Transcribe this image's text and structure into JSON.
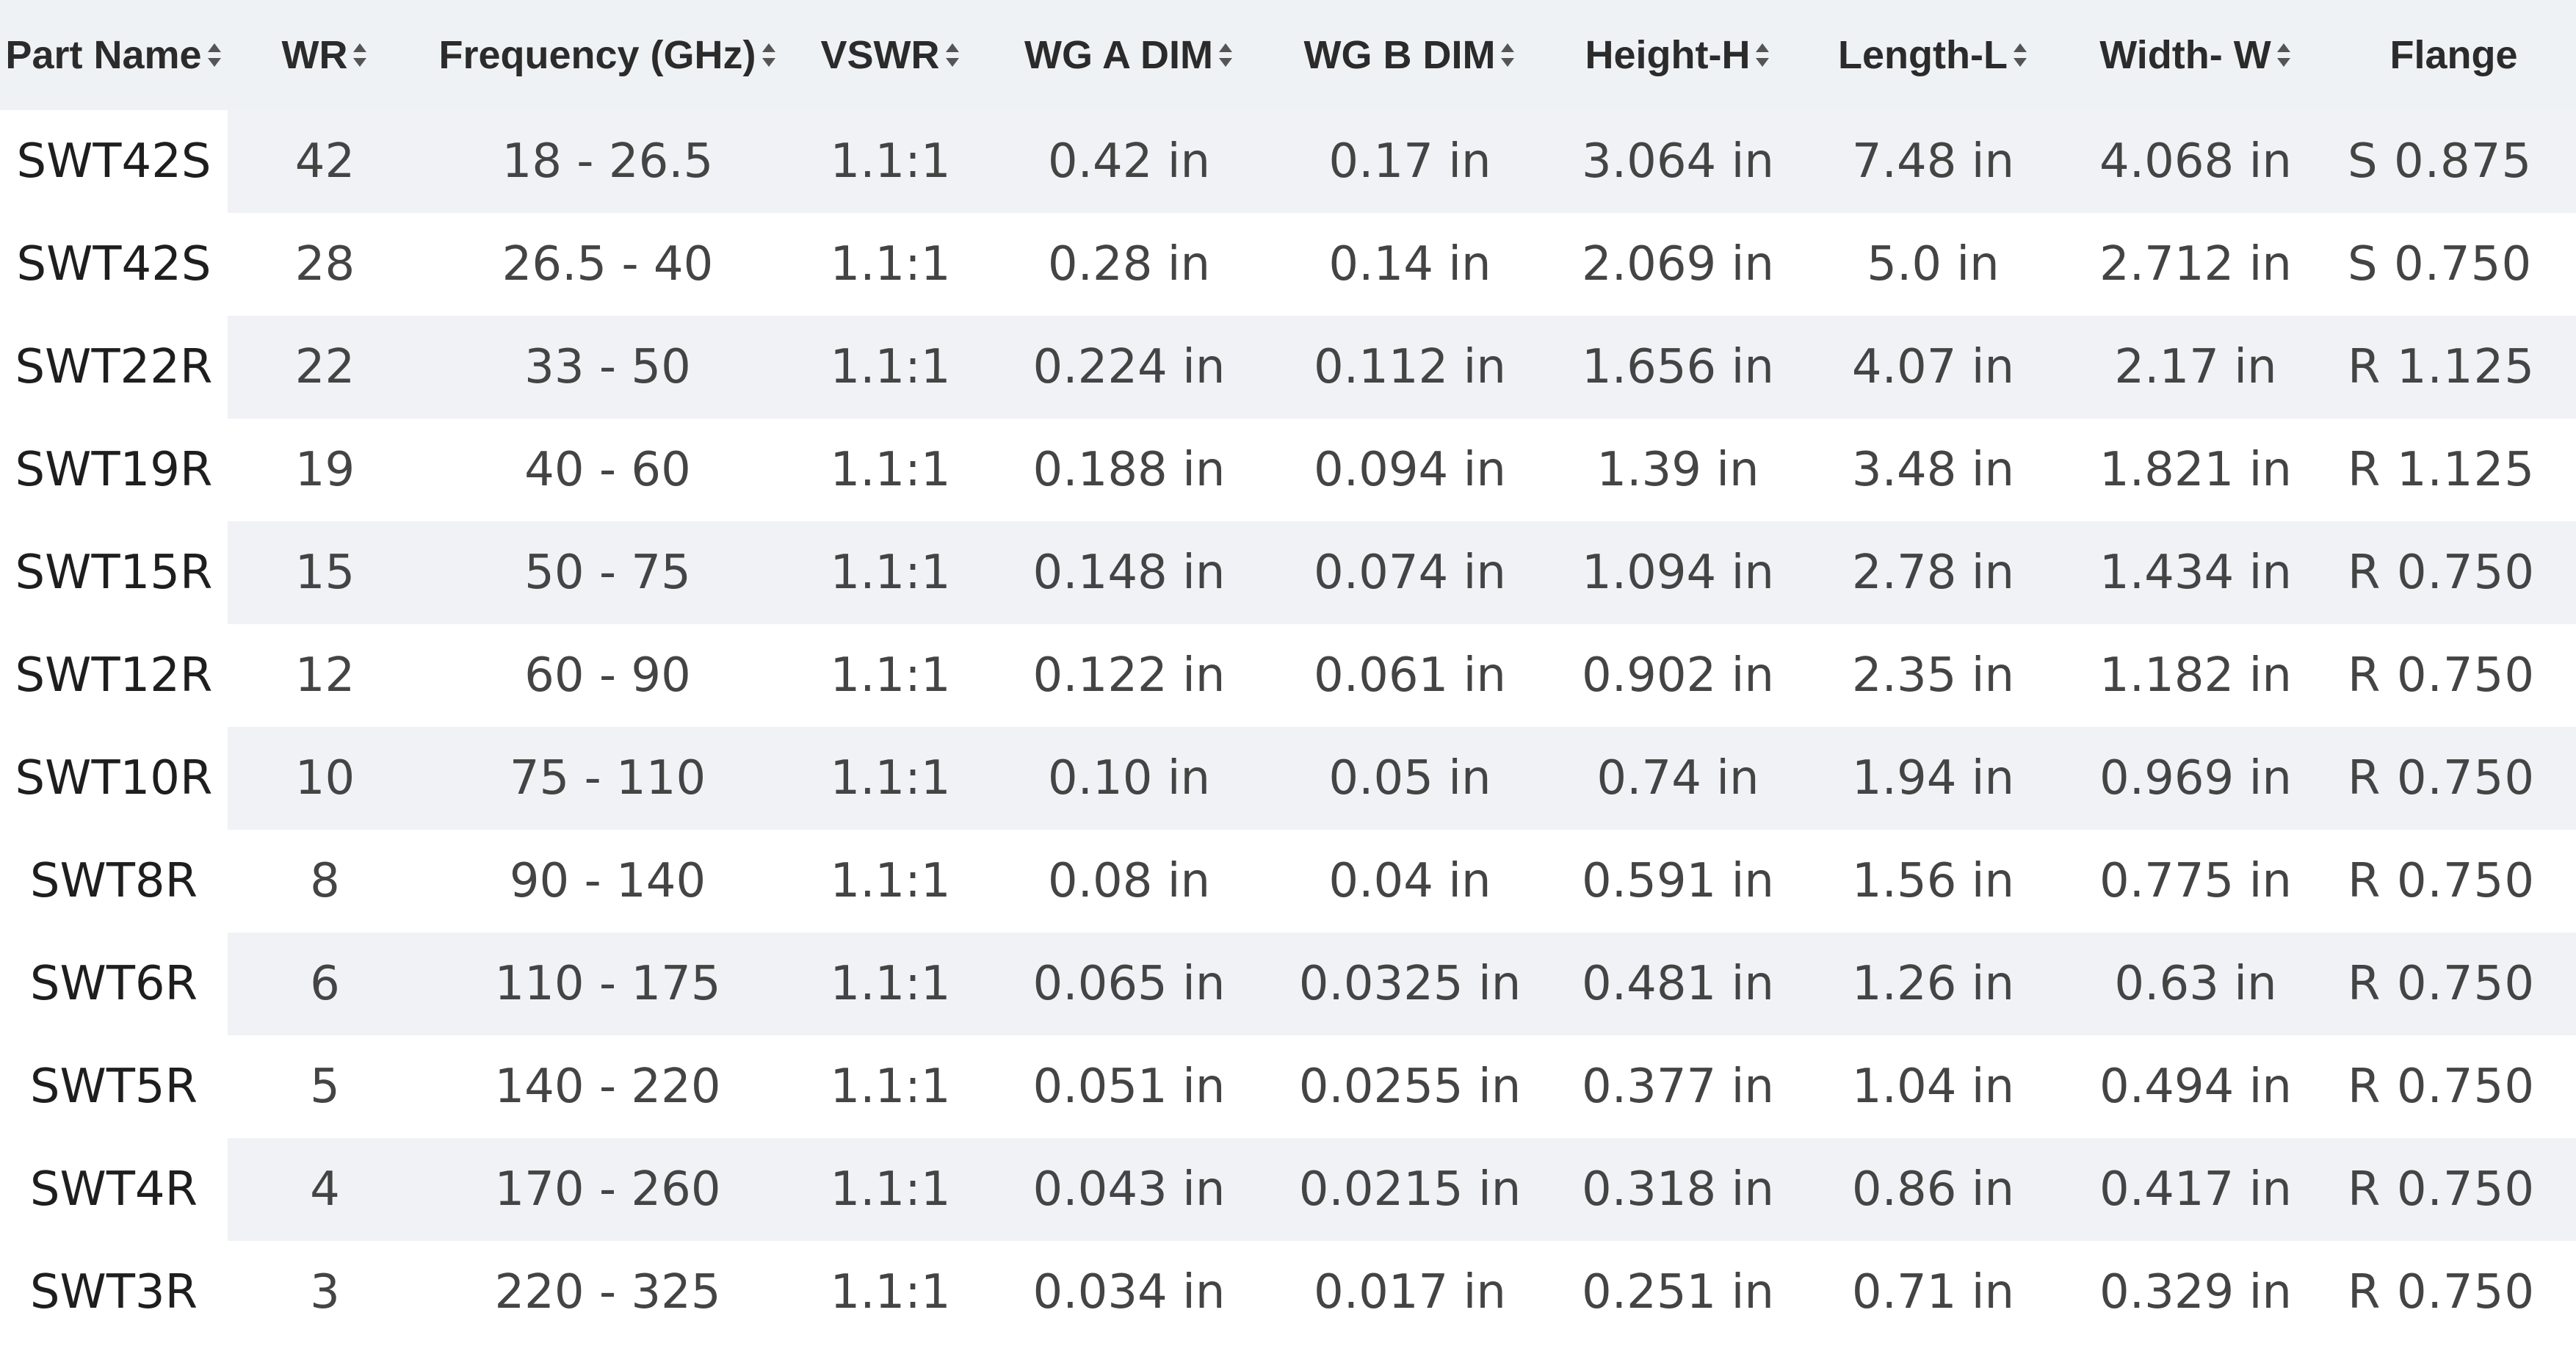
{
  "columns": [
    {
      "label": "Part Name",
      "sortable": true,
      "icon": "sort-icon"
    },
    {
      "label": "WR",
      "sortable": true,
      "icon": "sort-icon"
    },
    {
      "label": "Frequency (GHz)",
      "sortable": true,
      "icon": "sort-icon"
    },
    {
      "label": "VSWR",
      "sortable": true,
      "icon": "sort-icon"
    },
    {
      "label": "WG A DIM",
      "sortable": true,
      "icon": "sort-icon"
    },
    {
      "label": "WG B DIM",
      "sortable": true,
      "icon": "sort-icon"
    },
    {
      "label": "Height-H",
      "sortable": true,
      "icon": "sort-icon"
    },
    {
      "label": "Length-L",
      "sortable": true,
      "icon": "sort-icon"
    },
    {
      "label": "Width- W",
      "sortable": true,
      "icon": "sort-icon"
    },
    {
      "label": "Flange",
      "sortable": false
    }
  ],
  "rows": [
    [
      "SWT42S",
      "42",
      "18 - 26.5",
      "1.1:1",
      "0.42 in",
      "0.17 in",
      "3.064 in",
      "7.48 in",
      "4.068 in",
      "S 0.875"
    ],
    [
      "SWT42S",
      "28",
      "26.5 - 40",
      "1.1:1",
      "0.28 in",
      "0.14 in",
      "2.069 in",
      "5.0 in",
      "2.712 in",
      "S 0.750"
    ],
    [
      "SWT22R",
      "22",
      "33 - 50",
      "1.1:1",
      "0.224 in",
      "0.112 in",
      "1.656 in",
      "4.07 in",
      "2.17 in",
      "R 1.125"
    ],
    [
      "SWT19R",
      "19",
      "40 - 60",
      "1.1:1",
      "0.188 in",
      "0.094 in",
      "1.39 in",
      "3.48 in",
      "1.821 in",
      "R 1.125"
    ],
    [
      "SWT15R",
      "15",
      "50 - 75",
      "1.1:1",
      "0.148 in",
      "0.074 in",
      "1.094 in",
      "2.78 in",
      "1.434 in",
      "R 0.750"
    ],
    [
      "SWT12R",
      "12",
      "60 - 90",
      "1.1:1",
      "0.122 in",
      "0.061 in",
      "0.902 in",
      "2.35 in",
      "1.182 in",
      "R 0.750"
    ],
    [
      "SWT10R",
      "10",
      "75 - 110",
      "1.1:1",
      "0.10 in",
      "0.05 in",
      "0.74 in",
      "1.94 in",
      "0.969 in",
      "R 0.750"
    ],
    [
      "SWT8R",
      "8",
      "90 - 140",
      "1.1:1",
      "0.08 in",
      "0.04 in",
      "0.591 in",
      "1.56 in",
      "0.775 in",
      "R 0.750"
    ],
    [
      "SWT6R",
      "6",
      "110 - 175",
      "1.1:1",
      "0.065 in",
      "0.0325 in",
      "0.481 in",
      "1.26 in",
      "0.63 in",
      "R 0.750"
    ],
    [
      "SWT5R",
      "5",
      "140 - 220",
      "1.1:1",
      "0.051 in",
      "0.0255 in",
      "0.377 in",
      "1.04 in",
      "0.494 in",
      "R 0.750"
    ],
    [
      "SWT4R",
      "4",
      "170 - 260",
      "1.1:1",
      "0.043 in",
      "0.0215 in",
      "0.318 in",
      "0.86 in",
      "0.417 in",
      "R 0.750"
    ],
    [
      "SWT3R",
      "3",
      "220 - 325",
      "1.1:1",
      "0.034 in",
      "0.017 in",
      "0.251 in",
      "0.71 in",
      "0.329 in",
      "R 0.750"
    ]
  ],
  "colors": {
    "header_bg": "#eef2f4",
    "row_alt_bg": "#f1f2f5",
    "row_bg": "#ffffff",
    "header_text": "#2b2b2b",
    "cell_text": "#444444"
  }
}
